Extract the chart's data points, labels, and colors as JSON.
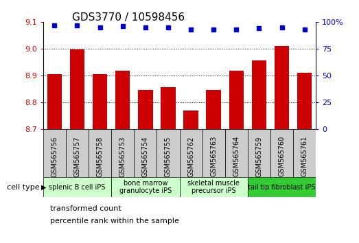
{
  "title": "GDS3770 / 10598456",
  "samples": [
    "GSM565756",
    "GSM565757",
    "GSM565758",
    "GSM565753",
    "GSM565754",
    "GSM565755",
    "GSM565762",
    "GSM565763",
    "GSM565764",
    "GSM565759",
    "GSM565760",
    "GSM565761"
  ],
  "bar_values": [
    8.905,
    8.997,
    8.905,
    8.918,
    8.845,
    8.855,
    8.768,
    8.845,
    8.918,
    8.955,
    9.01,
    8.91
  ],
  "percentile_values": [
    97,
    97,
    95,
    96,
    95,
    95,
    93,
    93,
    93,
    94,
    95,
    93
  ],
  "ylim_left": [
    8.7,
    9.1
  ],
  "ylim_right": [
    0,
    100
  ],
  "yticks_left": [
    8.7,
    8.8,
    8.9,
    9.0,
    9.1
  ],
  "yticks_right": [
    0,
    25,
    50,
    75,
    100
  ],
  "bar_color": "#cc0000",
  "dot_color": "#0000cc",
  "cell_groups": [
    {
      "label": "splenic B cell iPS",
      "start": 0,
      "end": 3,
      "color": "#ccffcc"
    },
    {
      "label": "bone marrow\ngranulocyte iPS",
      "start": 3,
      "end": 6,
      "color": "#ccffcc"
    },
    {
      "label": "skeletal muscle\nprecursor iPS",
      "start": 6,
      "end": 9,
      "color": "#ccffcc"
    },
    {
      "label": "tail tip fibroblast iPS",
      "start": 9,
      "end": 12,
      "color": "#33cc33"
    }
  ],
  "cell_type_label": "cell type",
  "legend_bar_label": "transformed count",
  "legend_dot_label": "percentile rank within the sample",
  "background_color": "#ffffff",
  "grid_color": "#000000",
  "tick_color_left": "#cc0000",
  "tick_color_right": "#0000cc",
  "sample_box_color": "#cccccc",
  "title_fontsize": 11,
  "tick_fontsize": 8,
  "sample_fontsize": 7,
  "legend_fontsize": 8
}
